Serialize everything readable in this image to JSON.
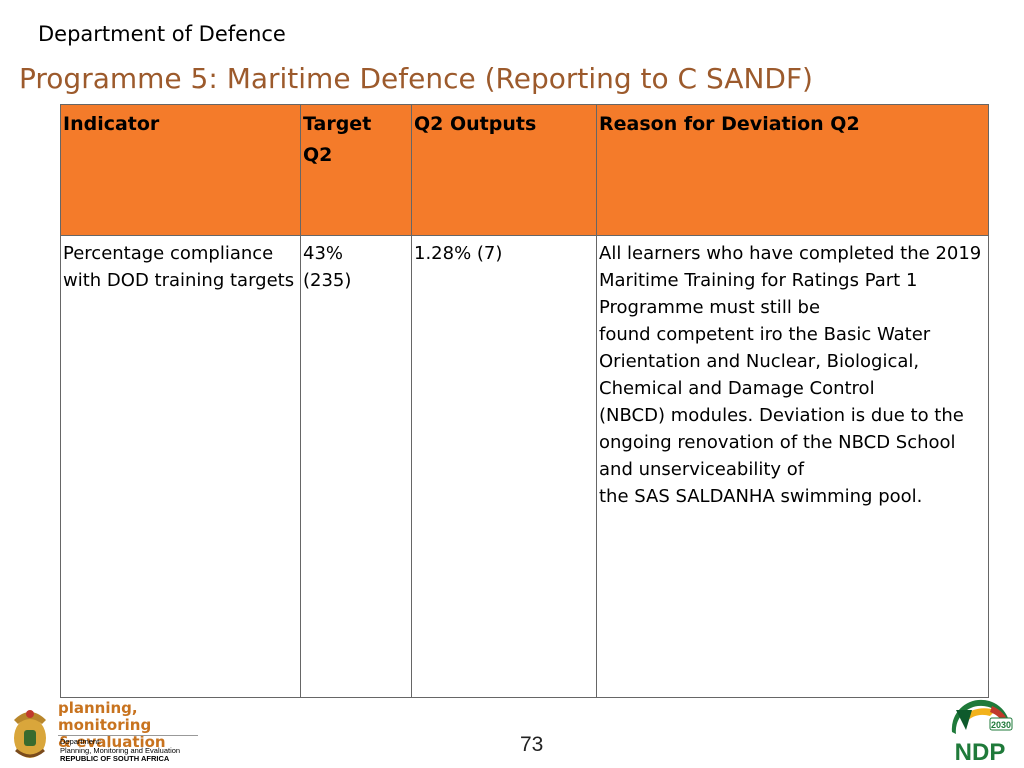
{
  "header": {
    "department": "Department of Defence",
    "title": "Programme 5:  Maritime Defence (Reporting to C SANDF)"
  },
  "table": {
    "columns": [
      "Indicator",
      "Target Q2",
      "Q2 Outputs",
      "Reason for Deviation Q2"
    ],
    "column_lines": {
      "target": [
        "Target",
        "Q2"
      ]
    },
    "rows": [
      {
        "indicator": [
          "Percentage compliance",
          "with DOD training targets"
        ],
        "target": [
          "43%",
          "(235)"
        ],
        "outputs": "1.28% (7)",
        "reason": [
          "All learners who have completed the 2019",
          "Maritime Training for Ratings Part 1",
          "Programme must still be",
          "found competent iro the Basic Water",
          "Orientation and Nuclear, Biological,",
          "Chemical and Damage Control",
          "(NBCD) modules. Deviation is due to the",
          "ongoing renovation of the NBCD School",
          "and unserviceability of",
          "the SAS SALDANHA swimming pool."
        ]
      }
    ]
  },
  "footer": {
    "pme_title_lines": [
      "planning, monitoring",
      "& evaluation"
    ],
    "pme_dept_lines": [
      "Department:",
      "Planning, Monitoring and Evaluation",
      "REPUBLIC OF SOUTH AFRICA"
    ],
    "page_number": "73",
    "ndp_logo_text": "NDP",
    "ndp_year": "2030"
  },
  "colors": {
    "header_fill": "#f47b2a",
    "title_color": "#9c5a2c",
    "pme_orange": "#c8731f"
  }
}
